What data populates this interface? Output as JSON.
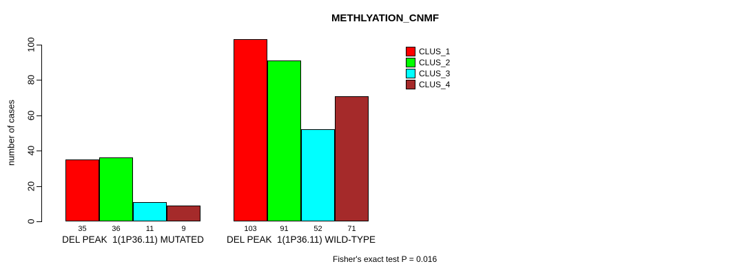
{
  "chart_data": {
    "type": "bar",
    "title": "METHLYATION_CNMF",
    "xlabel": "",
    "ylabel": "number of cases",
    "ylim": [
      0,
      100
    ],
    "yticks": [
      0,
      20,
      40,
      60,
      80,
      100
    ],
    "grid": false,
    "legend_position": "top-right",
    "bar_border_color": "#000000",
    "series": [
      {
        "name": "CLUS_1",
        "color": "#ff0000"
      },
      {
        "name": "CLUS_2",
        "color": "#00ff00"
      },
      {
        "name": "CLUS_3",
        "color": "#00ffff"
      },
      {
        "name": "CLUS_4",
        "color": "#a52a2a"
      }
    ],
    "groups": [
      {
        "label": "DEL PEAK  1(1P36.11) MUTATED",
        "values": [
          35,
          36,
          11,
          9
        ]
      },
      {
        "label": "DEL PEAK  1(1P36.11) WILD-TYPE",
        "values": [
          103,
          91,
          52,
          71
        ]
      }
    ]
  },
  "annotations": {
    "fisher_test": "Fisher's exact test P = 0.016"
  }
}
